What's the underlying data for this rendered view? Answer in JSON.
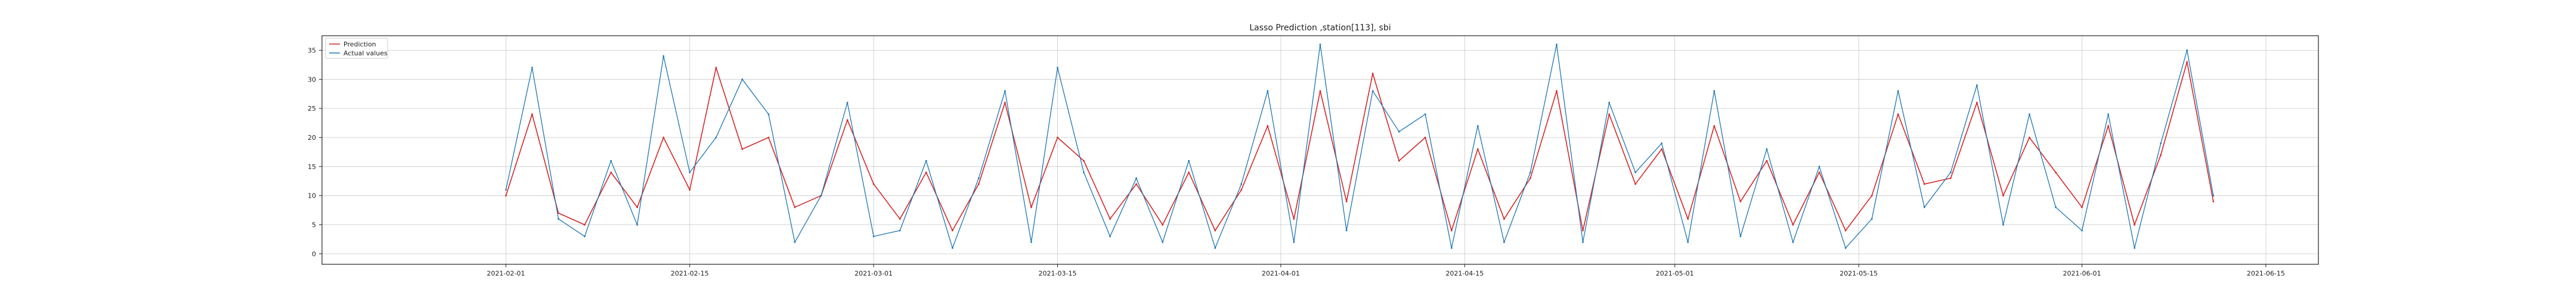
{
  "chart_data": {
    "type": "line",
    "title": "Lasso Prediction ,station[113], sbi",
    "xlabel": "",
    "ylabel": "",
    "x_axis_type": "date",
    "xlim": [
      "2021-01-18",
      "2021-06-19"
    ],
    "ylim": [
      -1.8,
      37.5
    ],
    "grid": true,
    "legend_position": "upper left",
    "x_ticks": [
      "2021-02-01",
      "2021-02-15",
      "2021-03-01",
      "2021-03-15",
      "2021-04-01",
      "2021-04-15",
      "2021-05-01",
      "2021-05-15",
      "2021-06-01",
      "2021-06-15"
    ],
    "y_ticks": [
      0,
      5,
      10,
      15,
      20,
      25,
      30,
      35
    ],
    "series": [
      {
        "name": "Prediction",
        "color": "#d62728",
        "x": [
          "2021-02-01",
          "2021-02-03",
          "2021-02-05",
          "2021-02-07",
          "2021-02-09",
          "2021-02-11",
          "2021-02-13",
          "2021-02-15",
          "2021-02-17",
          "2021-02-19",
          "2021-02-21",
          "2021-02-23",
          "2021-02-25",
          "2021-02-27",
          "2021-03-01",
          "2021-03-03",
          "2021-03-05",
          "2021-03-07",
          "2021-03-09",
          "2021-03-11",
          "2021-03-13",
          "2021-03-15",
          "2021-03-17",
          "2021-03-19",
          "2021-03-21",
          "2021-03-23",
          "2021-03-25",
          "2021-03-27",
          "2021-03-29",
          "2021-03-31",
          "2021-04-02",
          "2021-04-04",
          "2021-04-06",
          "2021-04-08",
          "2021-04-10",
          "2021-04-12",
          "2021-04-14",
          "2021-04-16",
          "2021-04-18",
          "2021-04-20",
          "2021-04-22",
          "2021-04-24",
          "2021-04-26",
          "2021-04-28",
          "2021-04-30",
          "2021-05-02",
          "2021-05-04",
          "2021-05-06",
          "2021-05-08",
          "2021-05-10",
          "2021-05-12",
          "2021-05-14",
          "2021-05-16",
          "2021-05-18",
          "2021-05-20",
          "2021-05-22",
          "2021-05-24",
          "2021-05-26",
          "2021-05-28",
          "2021-05-30",
          "2021-06-01",
          "2021-06-03",
          "2021-06-05",
          "2021-06-07",
          "2021-06-09",
          "2021-06-11"
        ],
        "y": [
          10,
          24,
          7,
          5,
          14,
          8,
          20,
          11,
          32,
          18,
          20,
          8,
          10,
          23,
          12,
          6,
          14,
          4,
          12,
          26,
          8,
          20,
          16,
          6,
          12,
          5,
          14,
          4,
          11,
          22,
          6,
          28,
          9,
          31,
          16,
          20,
          4,
          18,
          6,
          13,
          28,
          4,
          24,
          12,
          18,
          6,
          22,
          9,
          16,
          5,
          14,
          4,
          10,
          24,
          12,
          13,
          26,
          10,
          20,
          14,
          8,
          22,
          5,
          17,
          33,
          9
        ]
      },
      {
        "name": "Actual values",
        "color": "#1f77b4",
        "x": [
          "2021-02-01",
          "2021-02-03",
          "2021-02-05",
          "2021-02-07",
          "2021-02-09",
          "2021-02-11",
          "2021-02-13",
          "2021-02-15",
          "2021-02-17",
          "2021-02-19",
          "2021-02-21",
          "2021-02-23",
          "2021-02-25",
          "2021-02-27",
          "2021-03-01",
          "2021-03-03",
          "2021-03-05",
          "2021-03-07",
          "2021-03-09",
          "2021-03-11",
          "2021-03-13",
          "2021-03-15",
          "2021-03-17",
          "2021-03-19",
          "2021-03-21",
          "2021-03-23",
          "2021-03-25",
          "2021-03-27",
          "2021-03-29",
          "2021-03-31",
          "2021-04-02",
          "2021-04-04",
          "2021-04-06",
          "2021-04-08",
          "2021-04-10",
          "2021-04-12",
          "2021-04-14",
          "2021-04-16",
          "2021-04-18",
          "2021-04-20",
          "2021-04-22",
          "2021-04-24",
          "2021-04-26",
          "2021-04-28",
          "2021-04-30",
          "2021-05-02",
          "2021-05-04",
          "2021-05-06",
          "2021-05-08",
          "2021-05-10",
          "2021-05-12",
          "2021-05-14",
          "2021-05-16",
          "2021-05-18",
          "2021-05-20",
          "2021-05-22",
          "2021-05-24",
          "2021-05-26",
          "2021-05-28",
          "2021-05-30",
          "2021-06-01",
          "2021-06-03",
          "2021-06-05",
          "2021-06-07",
          "2021-06-09",
          "2021-06-11"
        ],
        "y": [
          11,
          32,
          6,
          3,
          16,
          5,
          34,
          14,
          20,
          30,
          24,
          2,
          10,
          26,
          3,
          4,
          16,
          1,
          13,
          28,
          2,
          32,
          14,
          3,
          13,
          2,
          16,
          1,
          12,
          28,
          2,
          36,
          4,
          28,
          21,
          24,
          1,
          22,
          2,
          14,
          36,
          2,
          26,
          14,
          19,
          2,
          28,
          3,
          18,
          2,
          15,
          1,
          6,
          28,
          8,
          14,
          29,
          5,
          24,
          8,
          4,
          24,
          1,
          19,
          35,
          10
        ]
      }
    ]
  }
}
